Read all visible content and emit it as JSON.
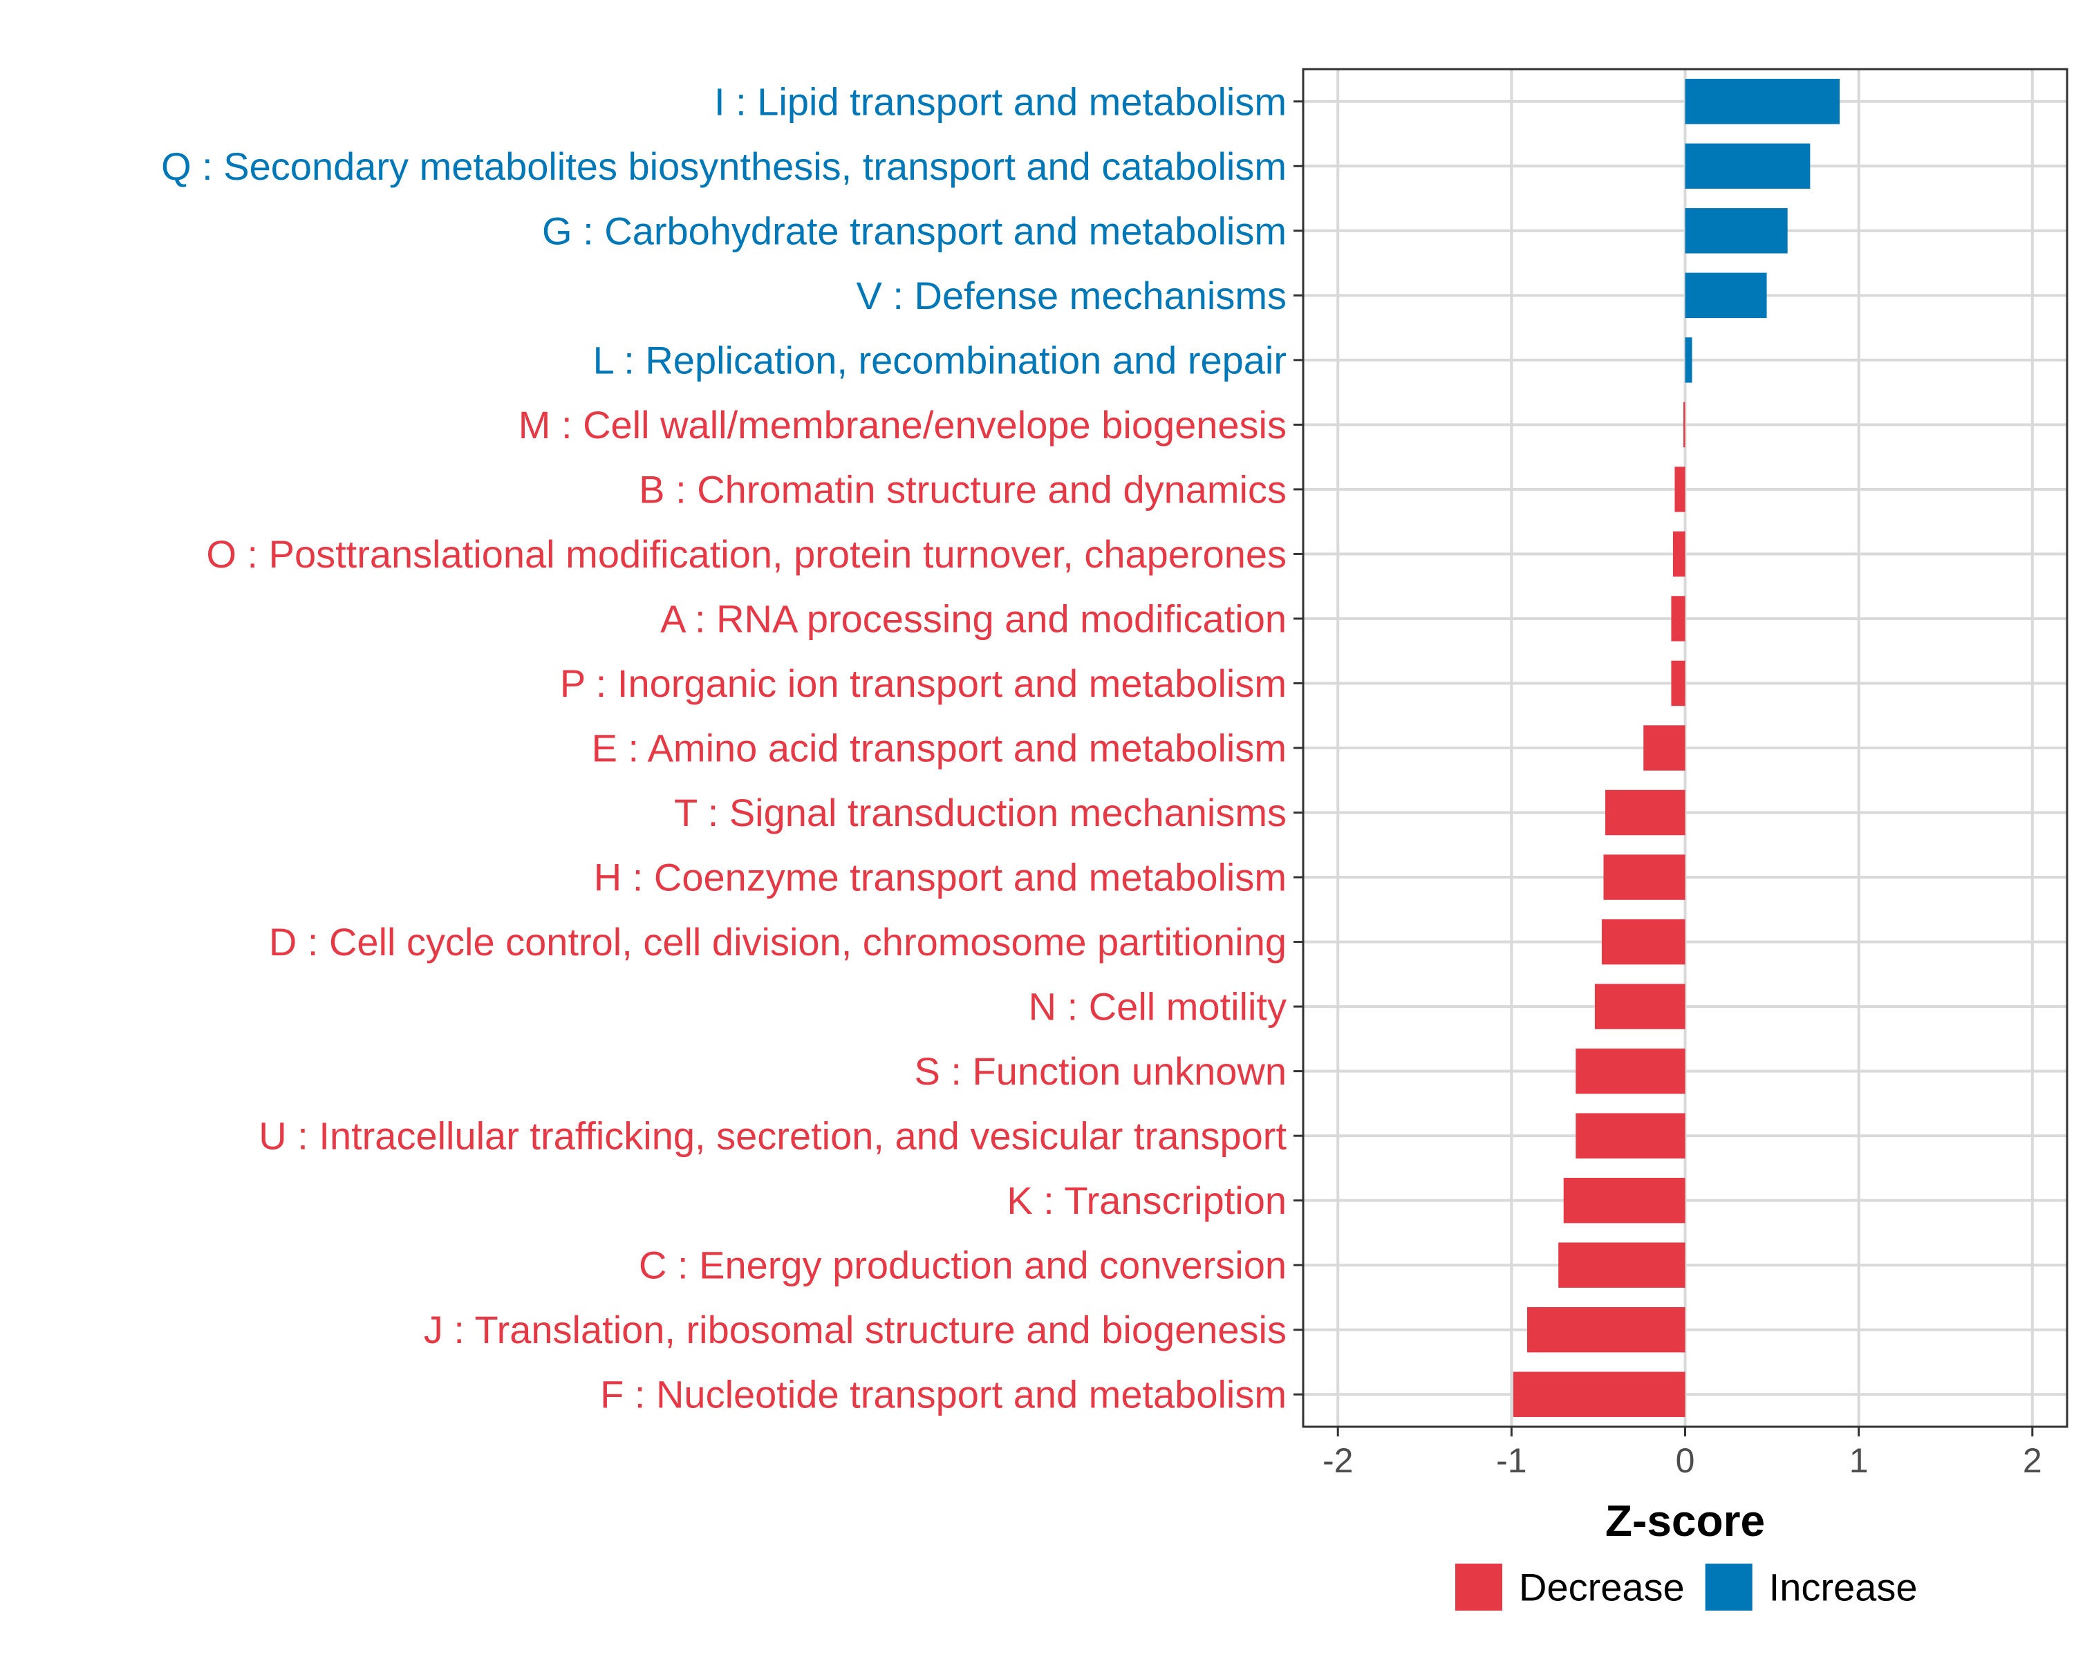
{
  "chart_data": {
    "type": "bar",
    "orientation": "horizontal",
    "xlabel": "Z-score",
    "xlim": [
      -2.2,
      2.2
    ],
    "xticks": [
      -2,
      -1,
      0,
      1,
      2
    ],
    "xtick_labels": [
      "-2",
      "-1",
      "0",
      "1",
      "2"
    ],
    "grid": true,
    "legend_position": "bottom",
    "colors": {
      "Decrease": "#e63946",
      "Increase": "#0077b6"
    },
    "legend": [
      {
        "label": "Decrease",
        "key": "Decrease"
      },
      {
        "label": "Increase",
        "key": "Increase"
      }
    ],
    "bars": [
      {
        "label": "I : Lipid transport and metabolism",
        "value": 0.89,
        "group": "Increase"
      },
      {
        "label": "Q : Secondary metabolites biosynthesis, transport and catabolism",
        "value": 0.72,
        "group": "Increase"
      },
      {
        "label": "G : Carbohydrate transport and metabolism",
        "value": 0.59,
        "group": "Increase"
      },
      {
        "label": "V : Defense mechanisms",
        "value": 0.47,
        "group": "Increase"
      },
      {
        "label": "L : Replication, recombination and repair",
        "value": 0.04,
        "group": "Increase"
      },
      {
        "label": "M : Cell wall/membrane/envelope biogenesis",
        "value": -0.01,
        "group": "Decrease"
      },
      {
        "label": "B : Chromatin structure and dynamics",
        "value": -0.06,
        "group": "Decrease"
      },
      {
        "label": "O : Posttranslational modification, protein turnover, chaperones",
        "value": -0.07,
        "group": "Decrease"
      },
      {
        "label": "A : RNA processing and modification",
        "value": -0.08,
        "group": "Decrease"
      },
      {
        "label": "P : Inorganic ion transport and metabolism",
        "value": -0.08,
        "group": "Decrease"
      },
      {
        "label": "E : Amino acid transport and metabolism",
        "value": -0.24,
        "group": "Decrease"
      },
      {
        "label": "T : Signal transduction mechanisms",
        "value": -0.46,
        "group": "Decrease"
      },
      {
        "label": "H : Coenzyme transport and metabolism",
        "value": -0.47,
        "group": "Decrease"
      },
      {
        "label": "D : Cell cycle control, cell division, chromosome partitioning",
        "value": -0.48,
        "group": "Decrease"
      },
      {
        "label": "N : Cell motility",
        "value": -0.52,
        "group": "Decrease"
      },
      {
        "label": "S : Function unknown",
        "value": -0.63,
        "group": "Decrease"
      },
      {
        "label": "U : Intracellular trafficking, secretion, and vesicular transport",
        "value": -0.63,
        "group": "Decrease"
      },
      {
        "label": "K : Transcription",
        "value": -0.7,
        "group": "Decrease"
      },
      {
        "label": "C : Energy production and conversion",
        "value": -0.73,
        "group": "Decrease"
      },
      {
        "label": "J : Translation, ribosomal structure and biogenesis",
        "value": -0.91,
        "group": "Decrease"
      },
      {
        "label": "F : Nucleotide transport and metabolism",
        "value": -0.99,
        "group": "Decrease"
      }
    ]
  }
}
